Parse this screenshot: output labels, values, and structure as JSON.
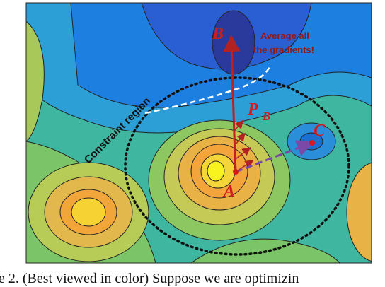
{
  "labels": {
    "b": "B",
    "average": [
      "Average all",
      "the gradients!"
    ],
    "constraint": "Constraint region",
    "p": "P",
    "p_sub": "B",
    "c": "C",
    "a": "A"
  },
  "caption": "e 2. (Best viewed in color) Suppose we are optimizin"
}
